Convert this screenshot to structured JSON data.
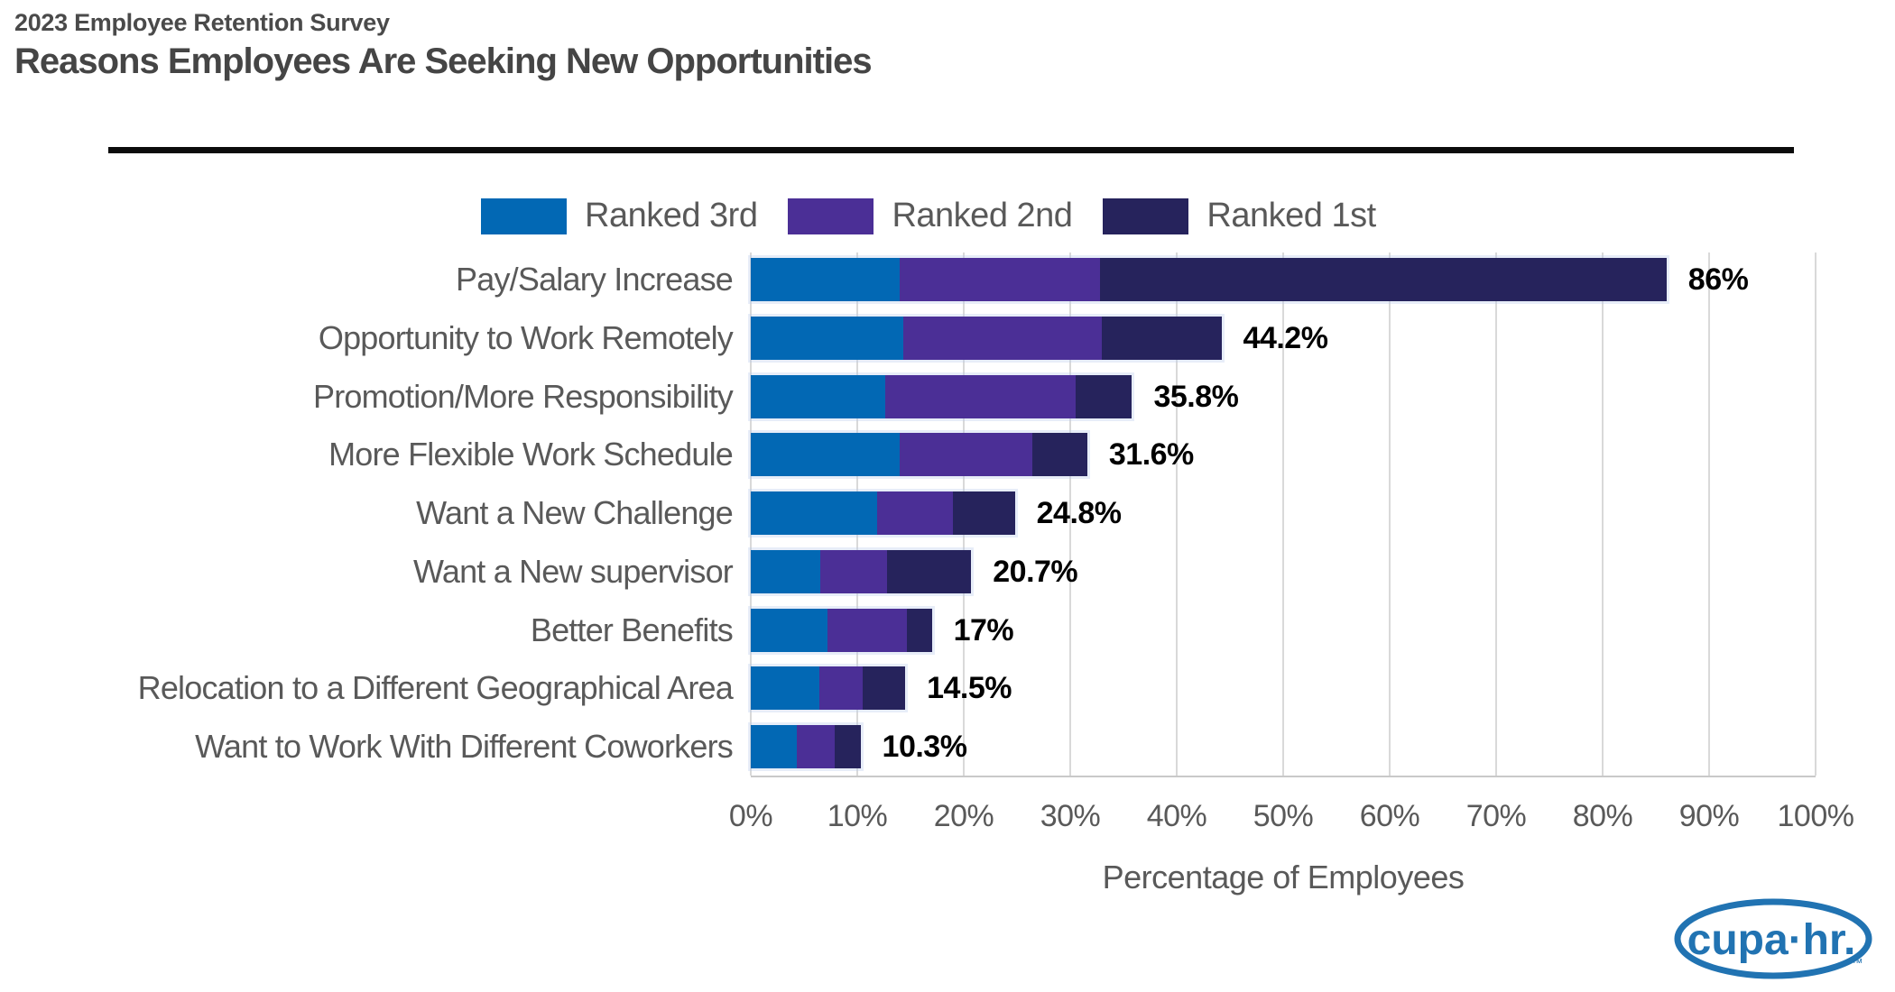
{
  "header": {
    "subtitle": "2023 Employee Retention Survey",
    "title": "Reasons Employees Are Seeking New Opportunities"
  },
  "legend": [
    {
      "label": "Ranked 3rd",
      "color": "#0268B4"
    },
    {
      "label": "Ranked 2nd",
      "color": "#4B2F96"
    },
    {
      "label": "Ranked 1st",
      "color": "#26235C"
    }
  ],
  "chart_data": {
    "type": "bar",
    "orientation": "horizontal",
    "stacked": true,
    "title": "Reasons Employees Are Seeking New Opportunities",
    "subtitle": "2023 Employee Retention Survey",
    "categories": [
      "Pay/Salary Increase",
      "Opportunity to Work Remotely",
      "Promotion/More Responsibility",
      "More Flexible Work Schedule",
      "Want a New Challenge",
      "Want a New supervisor",
      "Better Benefits",
      "Relocation to a Different Geographical Area",
      "Want to Work With Different Coworkers"
    ],
    "series": [
      {
        "name": "Ranked 3rd",
        "color": "#0268B4",
        "values": [
          14.0,
          14.3,
          12.6,
          14.0,
          11.9,
          6.5,
          7.2,
          6.4,
          4.3
        ]
      },
      {
        "name": "Ranked 2nd",
        "color": "#4B2F96",
        "values": [
          18.8,
          18.7,
          17.9,
          12.4,
          7.1,
          6.3,
          7.5,
          4.1,
          3.6
        ]
      },
      {
        "name": "Ranked 1st",
        "color": "#26235C",
        "values": [
          53.2,
          11.2,
          5.3,
          5.2,
          5.8,
          7.9,
          2.3,
          4.0,
          2.4
        ]
      }
    ],
    "totals": [
      86,
      44.2,
      35.8,
      31.6,
      24.8,
      20.7,
      17,
      14.5,
      10.3
    ],
    "total_labels": [
      "86%",
      "44.2%",
      "35.8%",
      "31.6%",
      "24.8%",
      "20.7%",
      "17%",
      "14.5%",
      "10.3%"
    ],
    "xlabel": "Percentage of Employees",
    "xlim": [
      0,
      100
    ],
    "x_ticks": [
      "0%",
      "10%",
      "20%",
      "30%",
      "40%",
      "50%",
      "60%",
      "70%",
      "80%",
      "90%",
      "100%"
    ],
    "grid": true,
    "legend_position": "top"
  },
  "logo": {
    "text": "cupa·hr.",
    "trademark": "™",
    "color": "#2173B2"
  },
  "colors": {
    "ranked_3rd": "#0268B4",
    "ranked_2nd": "#4B2F96",
    "ranked_1st": "#26235C",
    "gridline": "#D9D9D9",
    "axis_text": "#595959",
    "title_text": "#454545",
    "value_text": "#000000"
  }
}
